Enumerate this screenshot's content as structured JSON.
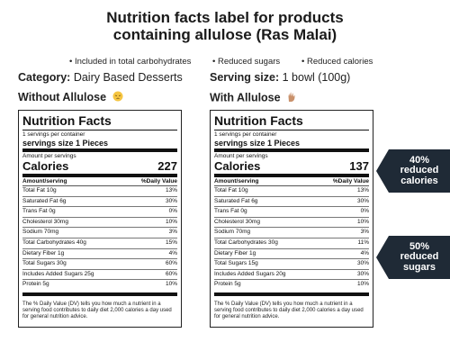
{
  "title": {
    "line1": "Nutrition facts label for products",
    "line2": "containing allulose (Ras Malai)"
  },
  "legend": [
    "• Included in total carbohydrates",
    "• Reduced sugars",
    "• Reduced calories"
  ],
  "category": {
    "label": "Category:",
    "value": "Dairy Based Desserts"
  },
  "serving": {
    "label": "Serving size:",
    "value": "1 bowl (100g)"
  },
  "left_panel": {
    "heading": "Without Allulose",
    "emoji_icon": "pensive-face-icon",
    "nf_title": "Nutrition Facts",
    "servings_per": "1  servings per container",
    "serving_size": "servings size 1  Pieces",
    "amount_per": "Amount per servings",
    "calories_label": "Calories",
    "calories_value": "227",
    "col_left": "Amount/serving",
    "col_right": "%Daily Value",
    "rows": [
      {
        "name": "Total Fat 10g",
        "dv": "13%"
      },
      {
        "name": "Saturated Fat 6g",
        "dv": "30%"
      },
      {
        "name": "Trans Fat 0g",
        "dv": "0%"
      },
      {
        "name": "Cholesterol 30mg",
        "dv": "10%"
      },
      {
        "name": "Sodium 70mg",
        "dv": "3%"
      },
      {
        "name": "Total Carbohydrates 40g",
        "dv": "15%"
      },
      {
        "name": "Dietary Fiber 1g",
        "dv": "4%"
      },
      {
        "name": "Total Sugars 30g",
        "dv": "60%"
      },
      {
        "name": "Includes Added Sugars 25g",
        "dv": "60%"
      },
      {
        "name": "Protein 5g",
        "dv": "10%"
      }
    ],
    "footnote": "The % Daily Value (DV) tells you how much a nutrient in a serving food contributes to daily diet 2,000 calories a day used for general nutrition advice."
  },
  "right_panel": {
    "heading": "With Allulose",
    "emoji_icon": "raised-hand-icon",
    "nf_title": "Nutrition Facts",
    "servings_per": "1  servings per container",
    "serving_size": "servings size 1  Pieces",
    "amount_per": "Amount per servings",
    "calories_label": "Calories",
    "calories_value": "137",
    "col_left": "Amount/serving",
    "col_right": "%Daily Value",
    "rows": [
      {
        "name": "Total Fat 10g",
        "dv": "13%"
      },
      {
        "name": "Saturated Fat 6g",
        "dv": "30%"
      },
      {
        "name": "Trans Fat 0g",
        "dv": "0%"
      },
      {
        "name": "Cholesterol 30mg",
        "dv": "10%"
      },
      {
        "name": "Sodium 70mg",
        "dv": "3%"
      },
      {
        "name": "Total Carbohydrates 30g",
        "dv": "11%"
      },
      {
        "name": "Dietary Fiber 1g",
        "dv": "4%"
      },
      {
        "name": "Total Sugars 15g",
        "dv": "30%"
      },
      {
        "name": "Includes Added Sugars 20g",
        "dv": "30%"
      },
      {
        "name": "Protein 5g",
        "dv": "10%"
      }
    ],
    "footnote": "The % Daily Value (DV) tells you how much a nutrient in a serving food contributes to daily diet 2,000 calories a day used for general nutrition advice."
  },
  "badges": {
    "calories": {
      "line1": "40%",
      "line2": "reduced",
      "line3": "calories"
    },
    "sugars": {
      "line1": "50%",
      "line2": "reduced",
      "line3": "sugars"
    }
  },
  "colors": {
    "badge": "#1f2a36",
    "text": "#1a1a1a"
  }
}
